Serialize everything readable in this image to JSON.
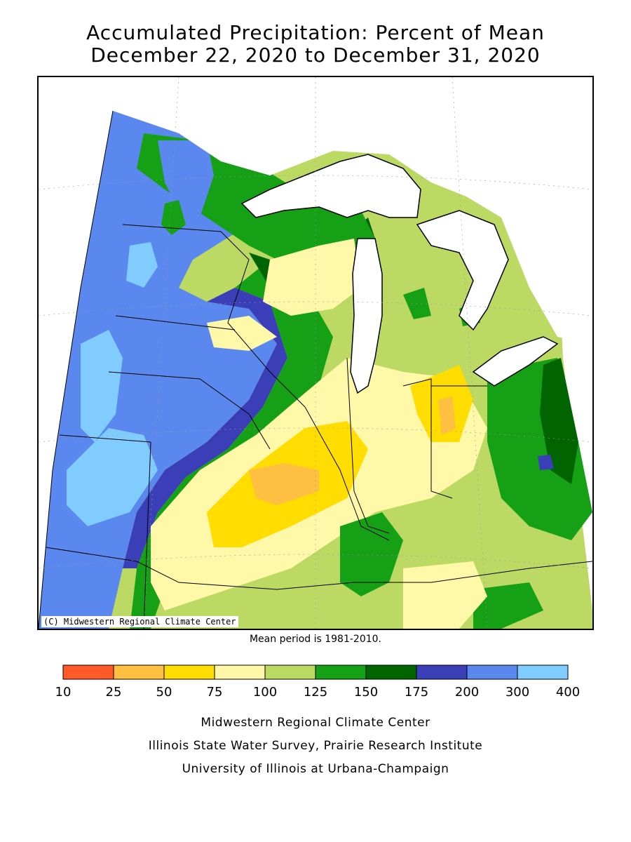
{
  "title_line1": "Accumulated Precipitation: Percent of Mean",
  "title_line2": "December 22, 2020 to December 31, 2020",
  "copyright": "(C) Midwestern Regional Climate Center",
  "mean_period": "Mean period is 1981-2010.",
  "legend": {
    "bins": [
      {
        "low": "10",
        "color": "#ff5a28"
      },
      {
        "low": "25",
        "color": "#ffbf40"
      },
      {
        "low": "50",
        "color": "#ffdd00"
      },
      {
        "low": "75",
        "color": "#fff8a8"
      },
      {
        "low": "100",
        "color": "#bcd964"
      },
      {
        "low": "125",
        "color": "#16a016"
      },
      {
        "low": "150",
        "color": "#006400"
      },
      {
        "low": "175",
        "color": "#3a3fb8"
      },
      {
        "low": "200",
        "color": "#5a88ee"
      },
      {
        "low": "300",
        "color": "#80ccff"
      }
    ],
    "last_label": "400"
  },
  "credits": {
    "line1": "Midwestern Regional Climate Center",
    "line2": "Illinois State Water Survey, Prairie Research Institute",
    "line3": "University of Illinois at Urbana-Champaign"
  }
}
